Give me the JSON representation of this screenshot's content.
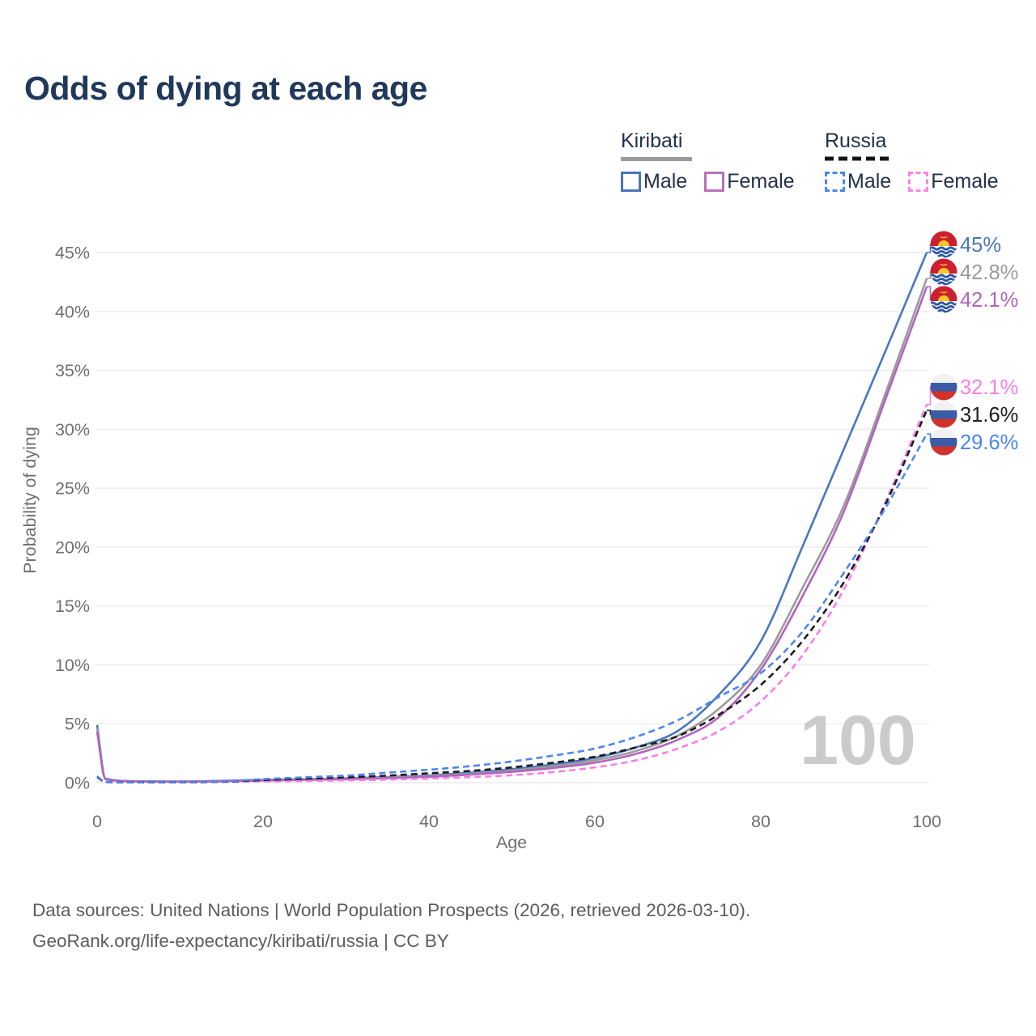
{
  "header": {
    "title": "Odds of dying at each age"
  },
  "legend": {
    "groups": [
      {
        "country": "Kiribati",
        "underline_style": "solid",
        "underline_color": "#9b9b9b",
        "items": [
          {
            "label": "Male",
            "color": "#4a74ba",
            "dashed": false
          },
          {
            "label": "Female",
            "color": "#bb70ba",
            "dashed": false
          }
        ]
      },
      {
        "country": "Russia",
        "underline_style": "dashed",
        "underline_color": "#141414",
        "items": [
          {
            "label": "Male",
            "color": "#4c86f0",
            "dashed": true
          },
          {
            "label": "Female",
            "color": "#fc83e8",
            "dashed": true
          }
        ]
      }
    ]
  },
  "chart_data": {
    "type": "line",
    "title": "Odds of dying at each age",
    "xlabel": "Age",
    "ylabel": "Probability of dying",
    "xlim": [
      0,
      100
    ],
    "ylim_percent": [
      0,
      45
    ],
    "grid": "horizontal",
    "x_ticks": [
      "0",
      "20",
      "40",
      "60",
      "80",
      "100"
    ],
    "y_tick_labels": [
      "0%",
      "5%",
      "10%",
      "15%",
      "20%",
      "25%",
      "30%",
      "35%",
      "40%",
      "45%"
    ],
    "watermark": "100",
    "ages": [
      0,
      1,
      5,
      10,
      15,
      20,
      25,
      30,
      35,
      40,
      45,
      50,
      55,
      60,
      65,
      70,
      75,
      80,
      85,
      90,
      95,
      100
    ],
    "series": [
      {
        "name": "Kiribati Male",
        "legend_label": "Male",
        "country": "Kiribati",
        "style": "solid",
        "color": "#4a77bf",
        "end_label": "45%",
        "end_value_percent": 45.0,
        "icon": "kiribati-flag-icon",
        "values_percent": [
          4.9,
          0.35,
          0.12,
          0.1,
          0.16,
          0.24,
          0.3,
          0.37,
          0.48,
          0.62,
          0.85,
          1.15,
          1.55,
          2.1,
          3.0,
          4.4,
          7.5,
          12.0,
          20.0,
          28.3,
          36.6,
          45.0
        ]
      },
      {
        "name": "Kiribati (both sexes)",
        "legend_label": "Kiribati",
        "country": "Kiribati",
        "style": "solid",
        "color": "#9b9b9b",
        "end_label": "42.8%",
        "end_value_percent": 42.8,
        "icon": "kiribati-flag-icon",
        "values_percent": [
          4.6,
          0.33,
          0.11,
          0.09,
          0.14,
          0.21,
          0.27,
          0.33,
          0.43,
          0.56,
          0.76,
          1.03,
          1.4,
          1.9,
          2.7,
          4.0,
          6.3,
          10.0,
          16.5,
          23.5,
          33.0,
          42.8
        ]
      },
      {
        "name": "Kiribati Female",
        "legend_label": "Female",
        "country": "Kiribati",
        "style": "solid",
        "color": "#b065bd",
        "end_label": "42.1%",
        "end_value_percent": 42.1,
        "icon": "kiribati-flag-icon",
        "values_percent": [
          4.3,
          0.3,
          0.1,
          0.08,
          0.12,
          0.18,
          0.23,
          0.29,
          0.38,
          0.5,
          0.68,
          0.92,
          1.25,
          1.7,
          2.45,
          3.65,
          5.6,
          9.6,
          15.8,
          23.0,
          32.5,
          42.1
        ]
      },
      {
        "name": "Russia Female",
        "legend_label": "Female",
        "country": "Russia",
        "style": "dashed",
        "color": "#fb7de9",
        "end_label": "32.1%",
        "end_value_percent": 32.1,
        "icon": "russia-flag-icon",
        "values_percent": [
          0.45,
          0.05,
          0.025,
          0.025,
          0.06,
          0.1,
          0.14,
          0.19,
          0.26,
          0.35,
          0.47,
          0.63,
          0.9,
          1.3,
          1.9,
          2.9,
          4.4,
          6.9,
          10.8,
          16.4,
          23.8,
          32.1
        ]
      },
      {
        "name": "Russia (both sexes)",
        "legend_label": "Russia",
        "country": "Russia",
        "style": "dashed",
        "color": "#1d1d1d",
        "end_label": "31.6%",
        "end_value_percent": 31.6,
        "icon": "russia-flag-icon",
        "values_percent": [
          0.5,
          0.055,
          0.028,
          0.028,
          0.08,
          0.22,
          0.33,
          0.45,
          0.6,
          0.8,
          1.0,
          1.3,
          1.7,
          2.2,
          3.0,
          3.95,
          5.8,
          8.3,
          12.0,
          17.0,
          23.6,
          31.6
        ]
      },
      {
        "name": "Russia Male",
        "legend_label": "Male",
        "country": "Russia",
        "style": "dashed",
        "color": "#4c86f0",
        "end_label": "29.6%",
        "end_value_percent": 29.6,
        "icon": "russia-flag-icon",
        "values_percent": [
          0.55,
          0.06,
          0.03,
          0.03,
          0.1,
          0.3,
          0.45,
          0.6,
          0.85,
          1.1,
          1.4,
          1.8,
          2.3,
          2.9,
          3.9,
          5.3,
          7.3,
          9.3,
          12.8,
          17.8,
          23.3,
          29.6
        ]
      }
    ]
  },
  "footer": {
    "line1": "Data sources: United Nations | World Population Prospects (2026, retrieved 2026-03-10).",
    "line2": "GeoRank.org/life-expectancy/kiribati/russia | CC BY"
  }
}
